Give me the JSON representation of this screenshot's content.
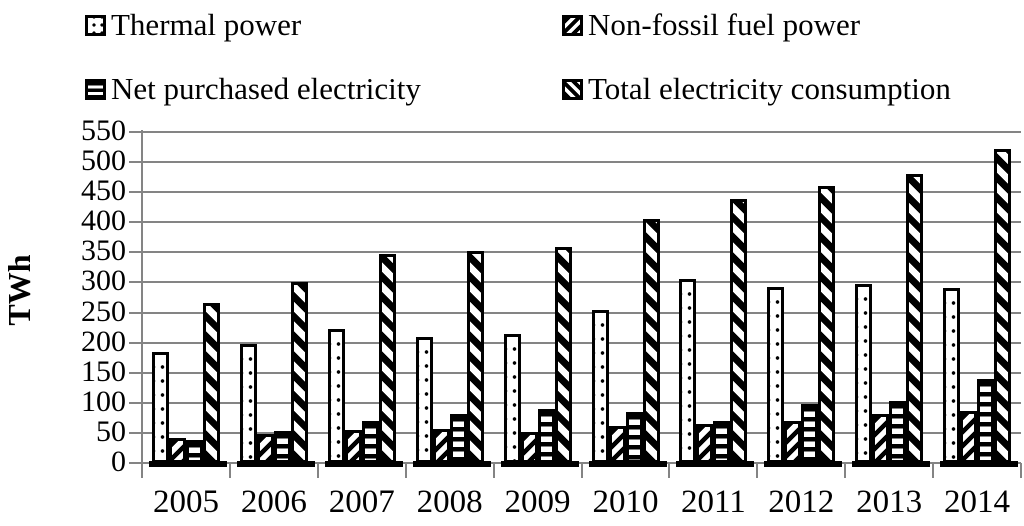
{
  "colors": {
    "bar_outline": "#000000",
    "bar_fill": "#ffffff",
    "grid": "#848484",
    "background": "#ffffff",
    "text": "#000000"
  },
  "legend": [
    {
      "label": "Thermal power",
      "pattern": "dots"
    },
    {
      "label": "Non-fossil fuel power",
      "pattern": "diagonal-up"
    },
    {
      "label": "Net purchased electricity",
      "pattern": "horizontal-lines"
    },
    {
      "label": "Total electricity consumption",
      "pattern": "diagonal-down"
    }
  ],
  "chart_data": {
    "type": "bar",
    "categories": [
      "2005",
      "2006",
      "2007",
      "2008",
      "2009",
      "2010",
      "2011",
      "2012",
      "2013",
      "2014"
    ],
    "series": [
      {
        "name": "Thermal power",
        "pattern": "dots",
        "values": [
          184,
          197,
          222,
          209,
          214,
          255,
          305,
          292,
          297,
          290
        ]
      },
      {
        "name": "Non-fossil fuel power",
        "pattern": "diagonal-up",
        "values": [
          42,
          48,
          55,
          56,
          51,
          62,
          64,
          70,
          82,
          87
        ]
      },
      {
        "name": "Net purchased electricity",
        "pattern": "horizontal-lines",
        "values": [
          38,
          53,
          70,
          82,
          90,
          85,
          70,
          98,
          103,
          140
        ]
      },
      {
        "name": "Total electricity consumption",
        "pattern": "diagonal-down",
        "values": [
          266,
          301,
          348,
          352,
          359,
          405,
          439,
          461,
          481,
          521
        ]
      }
    ],
    "title": "",
    "xlabel": "",
    "ylabel": "TWh",
    "ylim": [
      0,
      550
    ],
    "ytick_step": 50,
    "grid": true,
    "legend_position": "top"
  }
}
